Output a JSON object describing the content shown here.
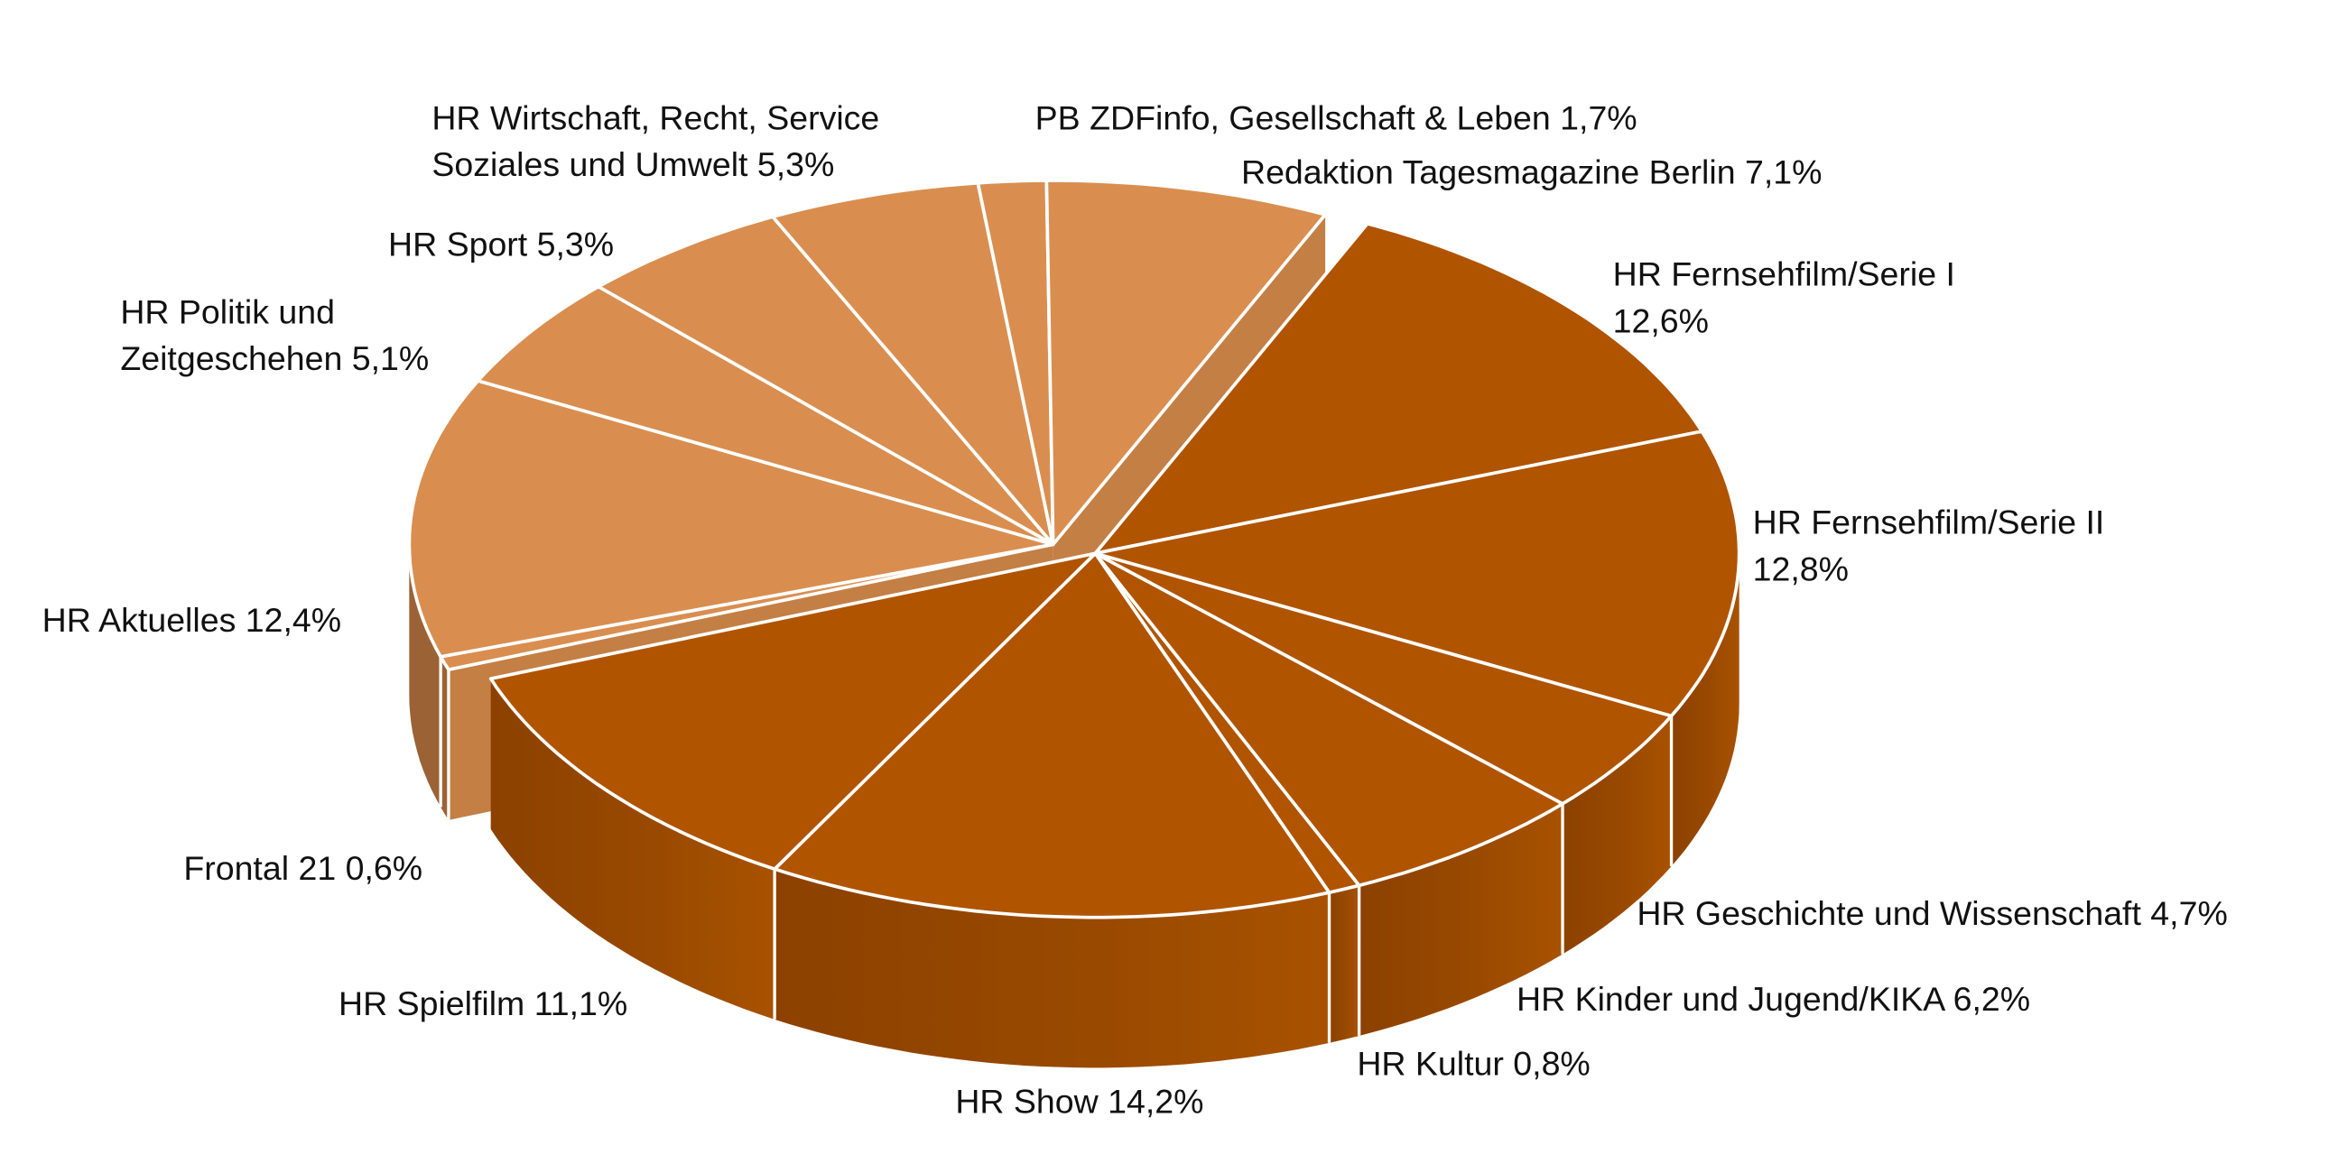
{
  "chart_data": {
    "type": "pie",
    "style": "3d-exploded",
    "unit": "%",
    "colors": {
      "group_light": "#D98E4F",
      "group_dark": "#B05400",
      "side_light": "#9B6235",
      "side_dark": "#984800",
      "cut_light": "#C47F45",
      "divider": "#FFFFFF"
    },
    "slices": [
      {
        "name": "HR Fernsehfilm/Serie I",
        "value": 12.6,
        "group": "dark",
        "label_lines": [
          "HR Fernsehfilm/Serie I",
          "12,6%"
        ]
      },
      {
        "name": "HR Fernsehfilm/Serie II",
        "value": 12.8,
        "group": "dark",
        "label_lines": [
          "HR Fernsehfilm/Serie II",
          "12,8%"
        ]
      },
      {
        "name": "HR Geschichte und Wissenschaft",
        "value": 4.7,
        "group": "dark",
        "label_lines": [
          "HR Geschichte und Wissenschaft 4,7%"
        ]
      },
      {
        "name": "HR Kinder und Jugend/KIKA",
        "value": 6.2,
        "group": "dark",
        "label_lines": [
          "HR Kinder und Jugend/KIKA 6,2%"
        ]
      },
      {
        "name": "HR Kultur",
        "value": 0.8,
        "group": "dark",
        "label_lines": [
          "HR Kultur 0,8%"
        ]
      },
      {
        "name": "HR Show",
        "value": 14.2,
        "group": "dark",
        "label_lines": [
          "HR Show 14,2%"
        ]
      },
      {
        "name": "HR Spielfilm",
        "value": 11.1,
        "group": "dark",
        "label_lines": [
          "HR Spielfilm 11,1%"
        ]
      },
      {
        "name": "Frontal 21",
        "value": 0.6,
        "group": "light",
        "label_lines": [
          "Frontal 21 0,6%"
        ]
      },
      {
        "name": "HR Aktuelles",
        "value": 12.4,
        "group": "light",
        "label_lines": [
          "HR Aktuelles 12,4%"
        ]
      },
      {
        "name": "HR Politik und Zeitgeschehen",
        "value": 5.1,
        "group": "light",
        "label_lines": [
          "HR Politik und",
          "Zeitgeschehen 5,1%"
        ]
      },
      {
        "name": "HR Sport",
        "value": 5.3,
        "group": "light",
        "label_lines": [
          "HR Sport 5,3%"
        ]
      },
      {
        "name": "HR Wirtschaft, Recht, Service Soziales und Umwelt",
        "value": 5.3,
        "group": "light",
        "label_lines": [
          "HR Wirtschaft, Recht, Service",
          "Soziales und Umwelt 5,3%"
        ]
      },
      {
        "name": "PB ZDFinfo, Gesellschaft & Leben",
        "value": 1.7,
        "group": "light",
        "label_lines": [
          "PB ZDFinfo, Gesellschaft & Leben 1,7%"
        ]
      },
      {
        "name": "Redaktion Tagesmagazine Berlin",
        "value": 7.1,
        "group": "light",
        "label_lines": [
          "Redaktion Tagesmagazine Berlin 7,1%"
        ]
      }
    ]
  }
}
